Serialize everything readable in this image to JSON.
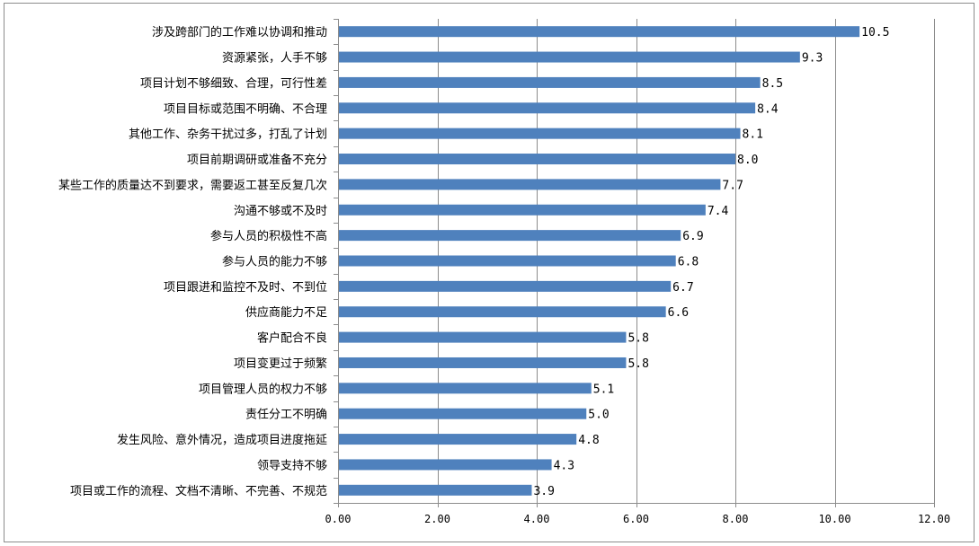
{
  "chart_data": {
    "type": "bar",
    "orientation": "horizontal",
    "title": "",
    "xlabel": "",
    "ylabel": "",
    "xlim": [
      0,
      12
    ],
    "x_ticks": [
      "0.00",
      "2.00",
      "4.00",
      "6.00",
      "8.00",
      "10.00",
      "12.00"
    ],
    "grid": true,
    "legend": "none",
    "bar_color": "#4f81bd",
    "categories": [
      "涉及跨部门的工作难以协调和推动",
      "资源紧张，人手不够",
      "项目计划不够细致、合理，可行性差",
      "项目目标或范围不明确、不合理",
      "其他工作、杂务干扰过多，打乱了计划",
      "项目前期调研或准备不充分",
      "某些工作的质量达不到要求，需要返工甚至反复几次",
      "沟通不够或不及时",
      "参与人员的积极性不高",
      "参与人员的能力不够",
      "项目跟进和监控不及时、不到位",
      "供应商能力不足",
      "客户配合不良",
      "项目变更过于频繁",
      "项目管理人员的权力不够",
      "责任分工不明确",
      "发生风险、意外情况，造成项目进度拖延",
      "领导支持不够",
      "项目或工作的流程、文档不清晰、不完善、不规范"
    ],
    "values": [
      10.5,
      9.3,
      8.5,
      8.4,
      8.1,
      8.0,
      7.7,
      7.4,
      6.9,
      6.8,
      6.7,
      6.6,
      5.8,
      5.8,
      5.1,
      5.0,
      4.8,
      4.3,
      3.9
    ],
    "value_labels": [
      "10.5",
      "9.3",
      "8.5",
      "8.4",
      "8.1",
      "8.0",
      "7.7",
      "7.4",
      "6.9",
      "6.8",
      "6.7",
      "6.6",
      "5.8",
      "5.8",
      "5.1",
      "5.0",
      "4.8",
      "4.3",
      "3.9"
    ]
  }
}
